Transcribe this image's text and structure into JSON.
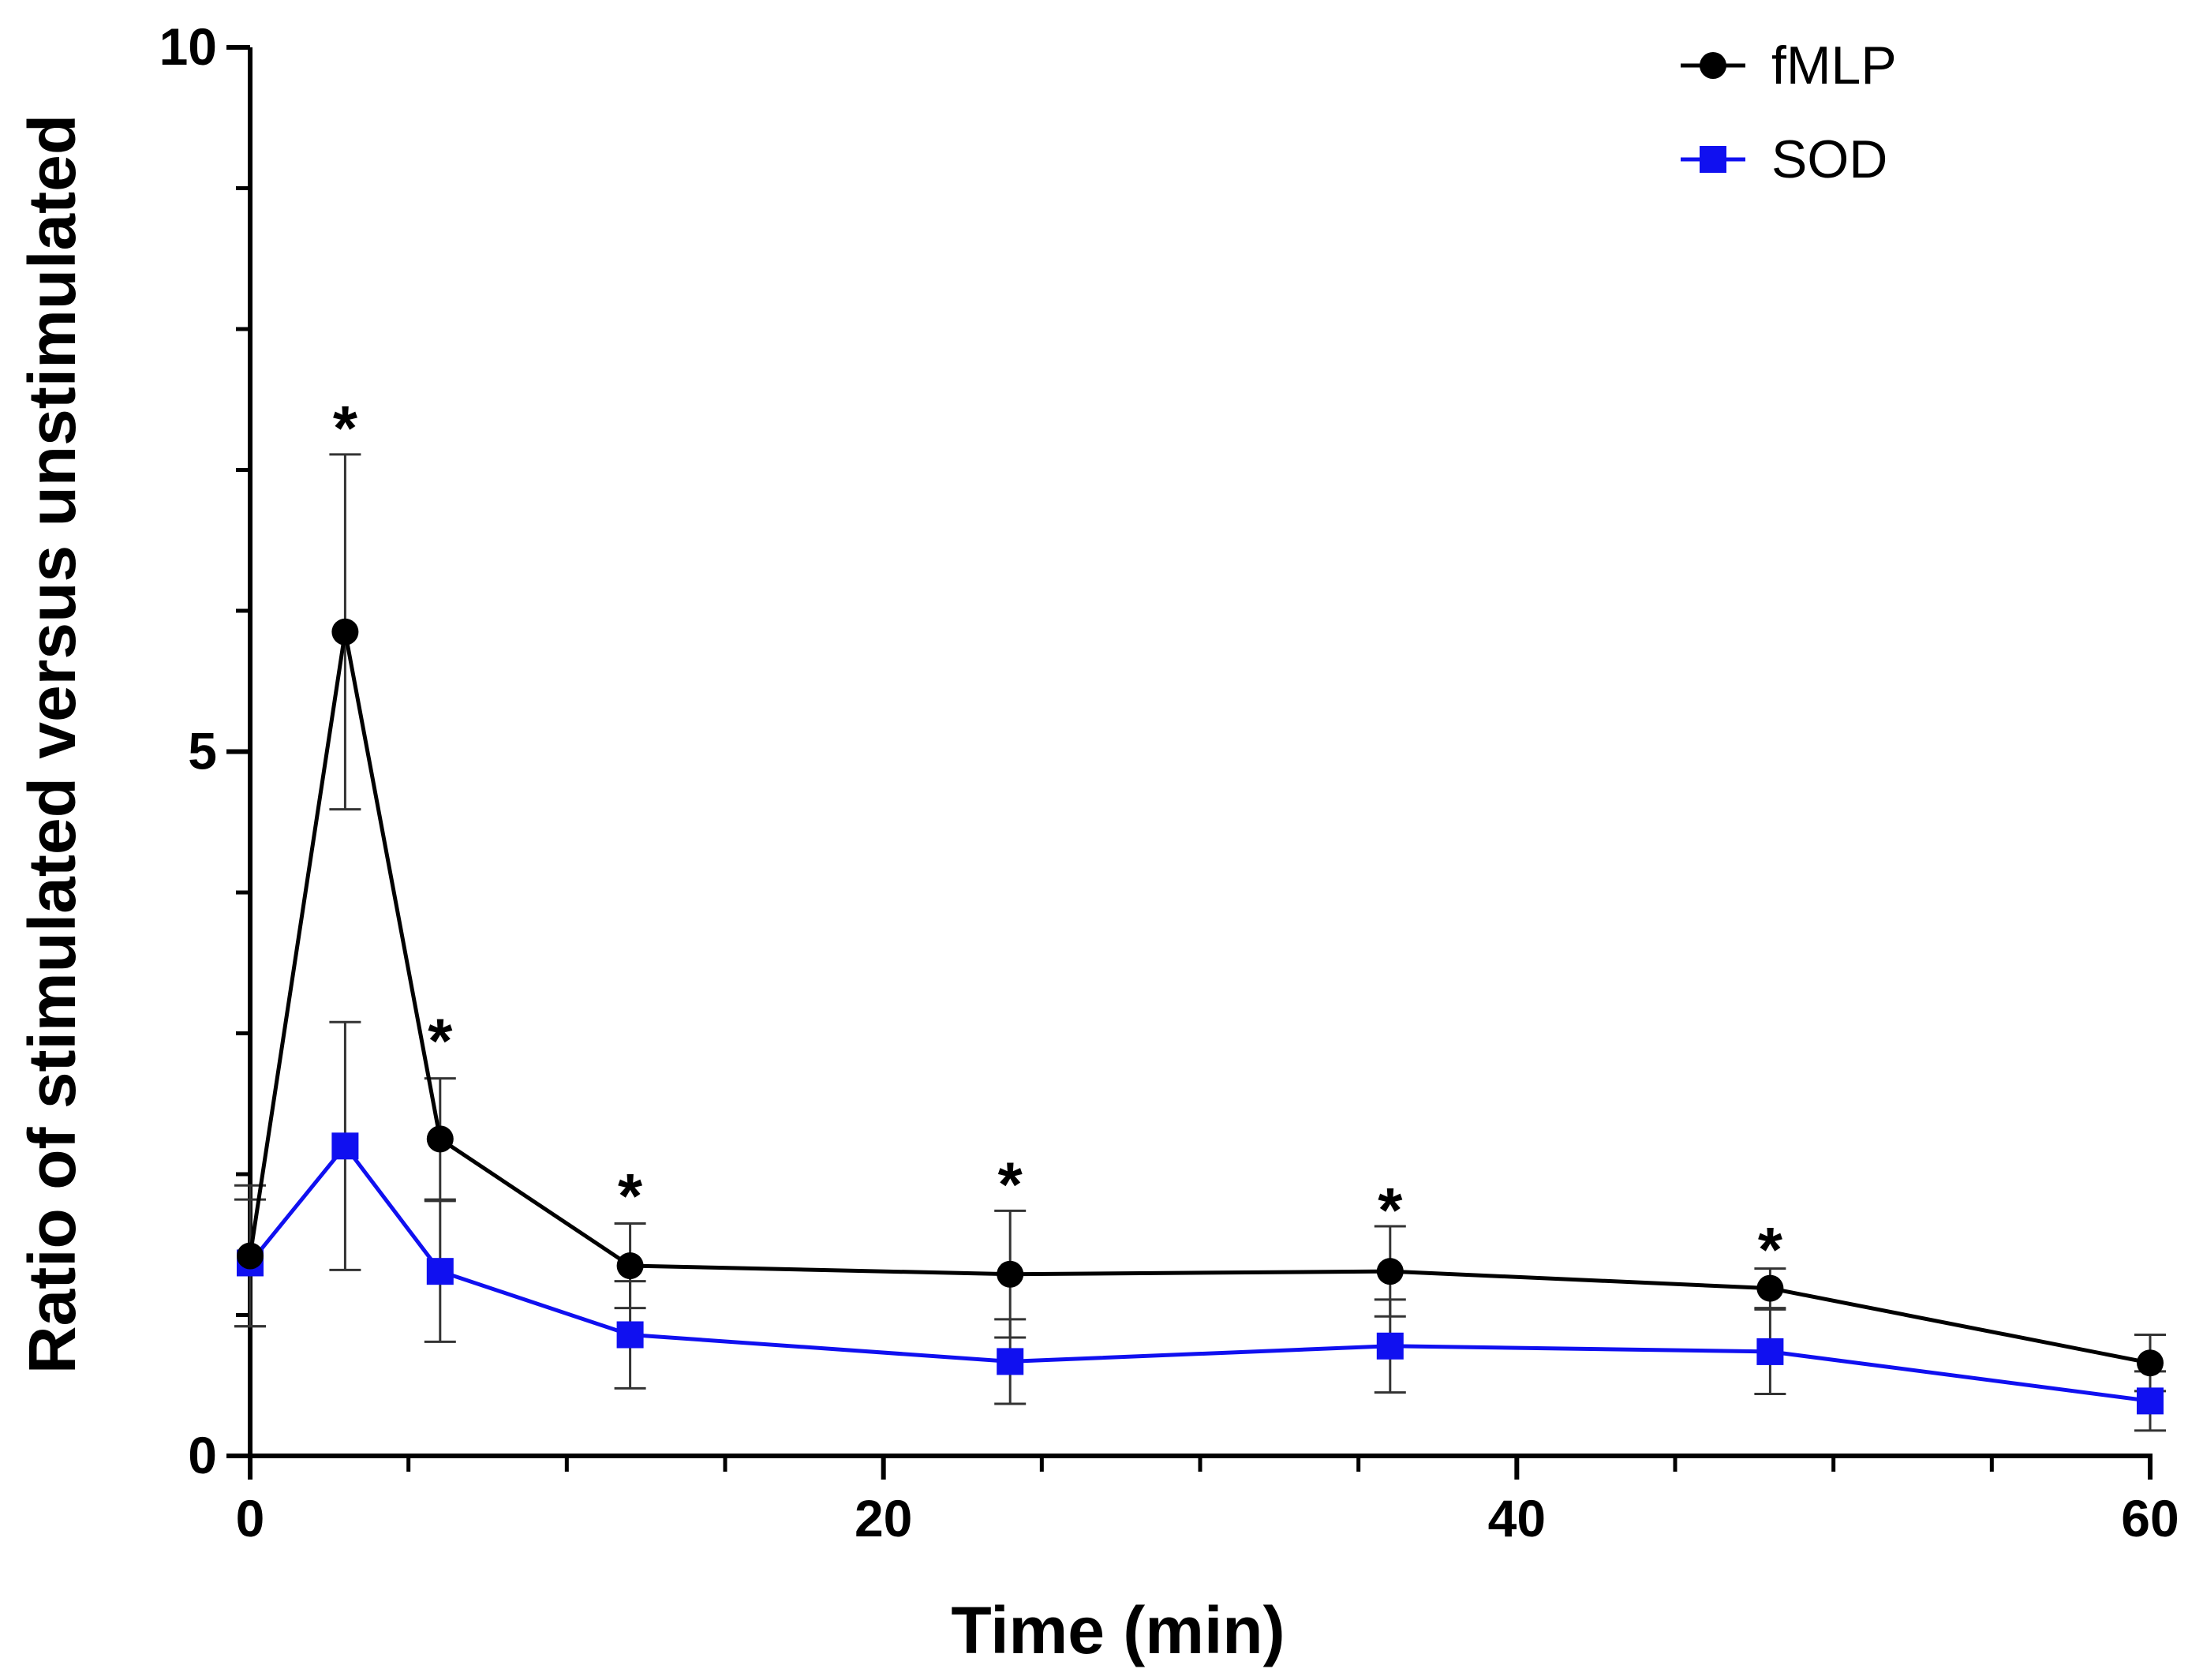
{
  "chart_data": {
    "type": "line",
    "title": "",
    "xlabel": "Time (min)",
    "ylabel": "Ratio of stimulated versus unstimulated",
    "xlim": [
      0,
      60
    ],
    "ylim": [
      0,
      10
    ],
    "x_ticks": [
      0,
      20,
      40,
      60
    ],
    "x_tick_labels": [
      "0",
      "20",
      "40",
      "60"
    ],
    "x_minor_ticks": [
      5,
      10,
      15,
      25,
      30,
      35,
      45,
      50,
      55
    ],
    "y_ticks": [
      0,
      5,
      10
    ],
    "y_tick_labels": [
      "0",
      "5",
      "10"
    ],
    "y_minor_ticks": [
      1,
      2,
      3,
      4,
      6,
      7,
      8,
      9
    ],
    "legend_position": "top-right",
    "series": [
      {
        "name": "fMLP",
        "color": "#000000",
        "marker": "circle",
        "x": [
          0,
          3,
          6,
          12,
          24,
          36,
          48,
          60
        ],
        "y": [
          1.42,
          5.85,
          2.25,
          1.35,
          1.29,
          1.31,
          1.19,
          0.66
        ],
        "error": [
          0.5,
          1.26,
          0.43,
          0.3,
          0.45,
          0.32,
          0.14,
          0.2
        ]
      },
      {
        "name": "SOD",
        "color": "#1010f0",
        "marker": "square",
        "x": [
          0,
          3,
          6,
          12,
          24,
          36,
          48,
          60
        ],
        "y": [
          1.37,
          2.2,
          1.31,
          0.86,
          0.67,
          0.78,
          0.74,
          0.39
        ],
        "error": [
          0.45,
          0.88,
          0.5,
          0.38,
          0.3,
          0.33,
          0.3,
          0.21
        ]
      }
    ],
    "annotations": [
      {
        "text": "*",
        "x": 3,
        "y": 7.45
      },
      {
        "text": "*",
        "x": 6,
        "y": 3.1
      },
      {
        "text": "*",
        "x": 12,
        "y": 2.0
      },
      {
        "text": "*",
        "x": 24,
        "y": 2.08
      },
      {
        "text": "*",
        "x": 36,
        "y": 1.9
      },
      {
        "text": "*",
        "x": 48,
        "y": 1.62
      }
    ]
  }
}
